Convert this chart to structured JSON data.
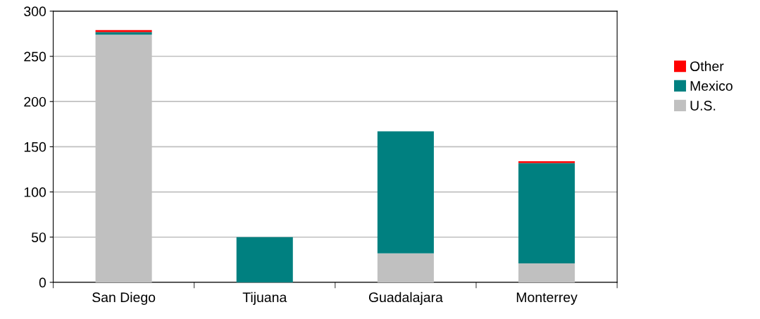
{
  "chart_data": {
    "type": "bar",
    "stacked": true,
    "categories": [
      "San Diego",
      "Tijuana",
      "Guadalajara",
      "Monterrey"
    ],
    "series": [
      {
        "name": "U.S.",
        "color": "#c0c0c0",
        "values": [
          274,
          0,
          32,
          21
        ]
      },
      {
        "name": "Mexico",
        "color": "#008080",
        "values": [
          3,
          50,
          135,
          111
        ]
      },
      {
        "name": "Other",
        "color": "#ff0000",
        "values": [
          2,
          0,
          0,
          2
        ]
      }
    ],
    "ylim": [
      0,
      300
    ],
    "yticks": [
      0,
      50,
      100,
      150,
      200,
      250,
      300
    ],
    "grid": "y",
    "legend": "right"
  }
}
